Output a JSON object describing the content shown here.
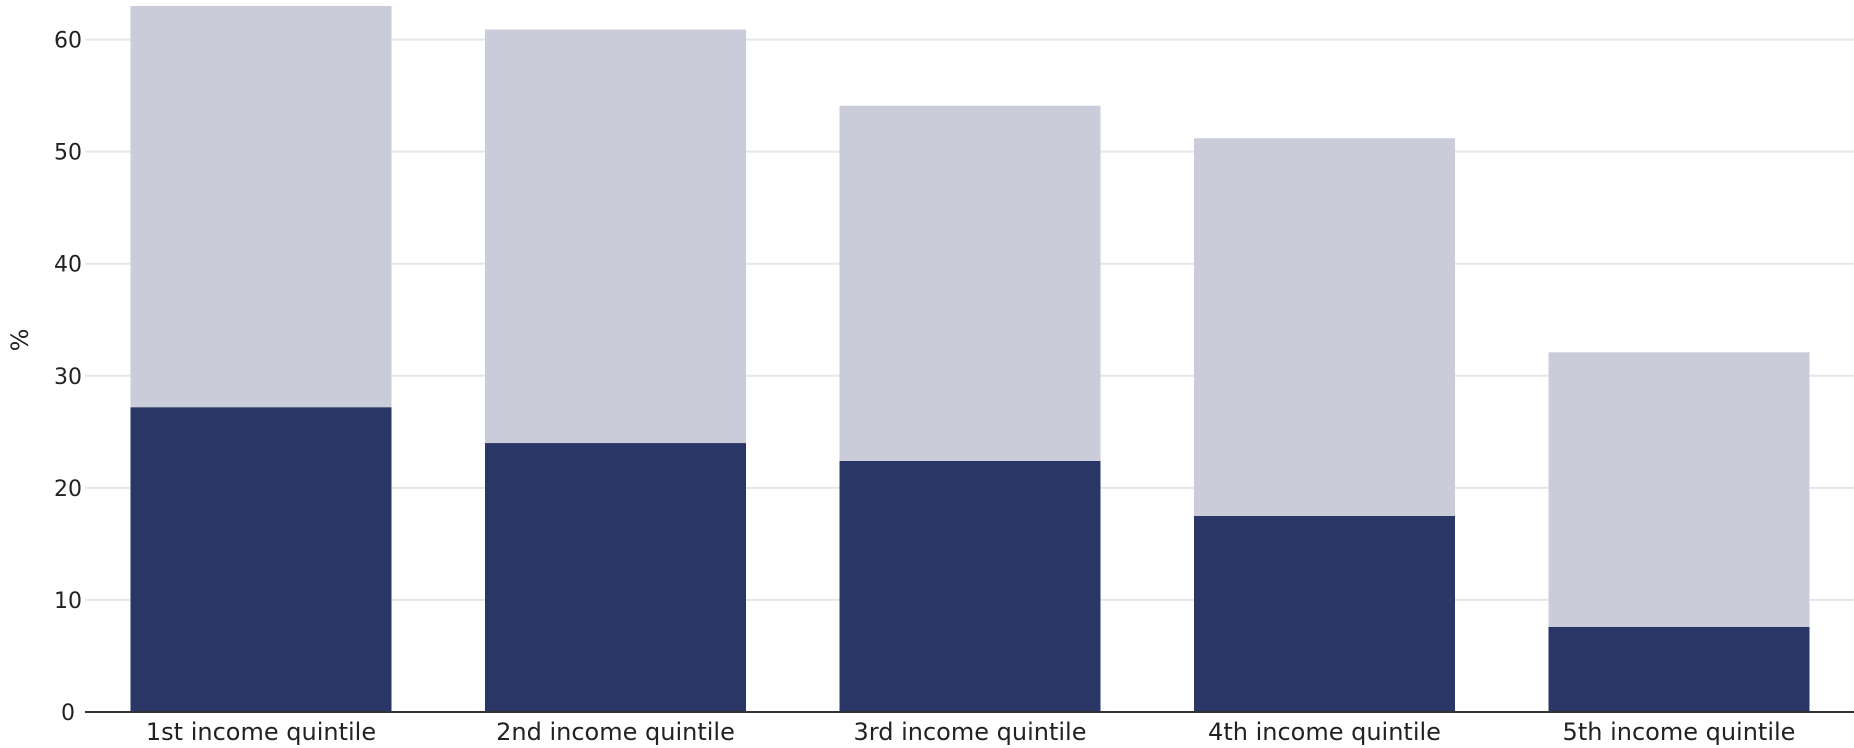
{
  "chart_data": {
    "type": "bar",
    "stacked": true,
    "categories": [
      "1st income quintile",
      "2nd income quintile",
      "3rd income quintile",
      "4th income quintile",
      "5th income quintile"
    ],
    "series": [
      {
        "values": [
          27.2,
          24.0,
          22.4,
          17.5,
          7.6
        ],
        "color": "#2a3665"
      },
      {
        "values": [
          35.8,
          36.9,
          31.7,
          33.7,
          24.5
        ],
        "color": "#cacdd9"
      }
    ],
    "title": "",
    "xlabel": "",
    "ylabel": "%",
    "ylim": [
      0,
      63
    ],
    "yticks": [
      0,
      10,
      20,
      30,
      40,
      50,
      60
    ],
    "grid": true,
    "legend": "none"
  }
}
